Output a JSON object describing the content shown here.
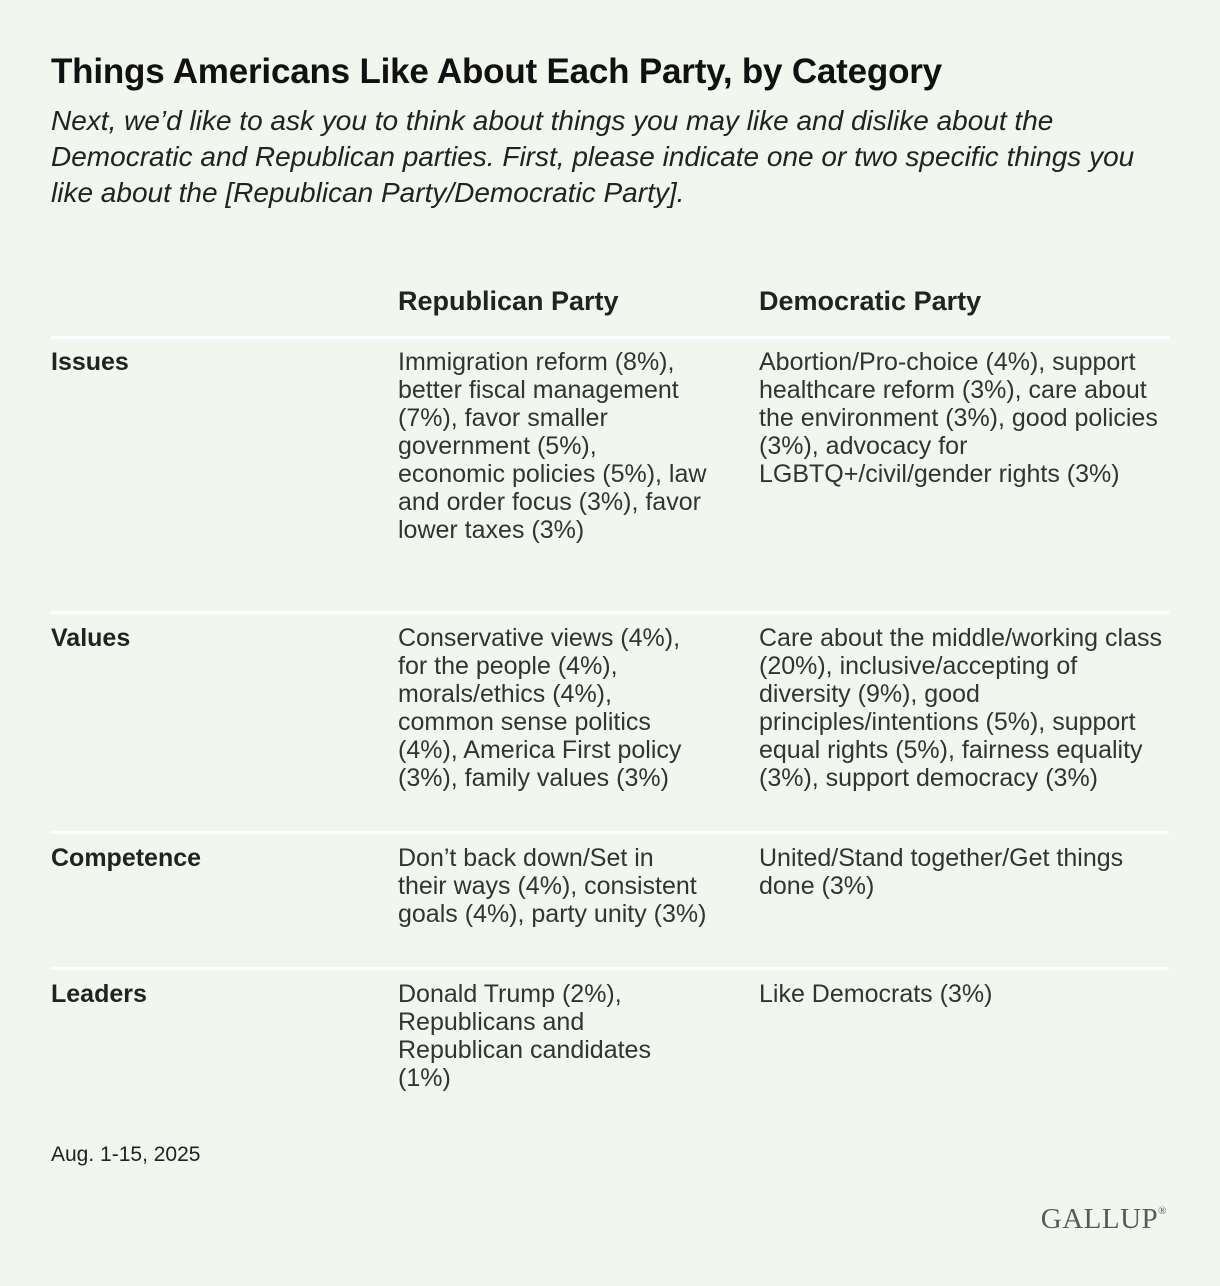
{
  "title": "Things Americans Like About Each Party, by Category",
  "subtitle": "Next, we’d like to ask you to think about things you may like and dislike about the Democratic and Republican parties. First, please indicate one or two specific things you like about the [Republican Party/Democratic Party].",
  "columns": {
    "republican": "Republican Party",
    "democratic": "Democratic Party"
  },
  "rows": [
    {
      "category": "Issues",
      "republican": "Immigration reform (8%), better fiscal management (7%), favor smaller government (5%), economic policies (5%), law and order focus (3%), favor lower taxes (3%)",
      "democratic": "Abortion/Pro-choice (4%), support healthcare reform (3%), care about the environment (3%), good policies (3%), advocacy for LGBTQ+/civil/gender rights (3%)"
    },
    {
      "category": "Values",
      "republican": "Conservative views (4%), for the people (4%), morals/ethics (4%), common sense politics (4%), America First policy (3%), family values (3%)",
      "democratic": "Care about the middle/working class (20%), inclusive/accepting of diversity (9%), good principles/intentions (5%), support equal rights (5%), fairness equality (3%), support democracy (3%)"
    },
    {
      "category": "Competence",
      "republican": "Don’t back down/Set in their ways (4%), consistent goals (4%), party unity (3%)",
      "democratic": "United/Stand together/Get things done (3%)"
    },
    {
      "category": "Leaders",
      "republican": "Donald Trump (2%), Republicans and Republican candidates (1%)",
      "democratic": "Like Democrats (3%)"
    }
  ],
  "footnote": "Aug. 1-15, 2025",
  "logo": {
    "text": "GALLUP",
    "mark": "®"
  },
  "colors": {
    "background": "#f1f6ef",
    "divider": "#ffffff",
    "text": "#222222"
  }
}
